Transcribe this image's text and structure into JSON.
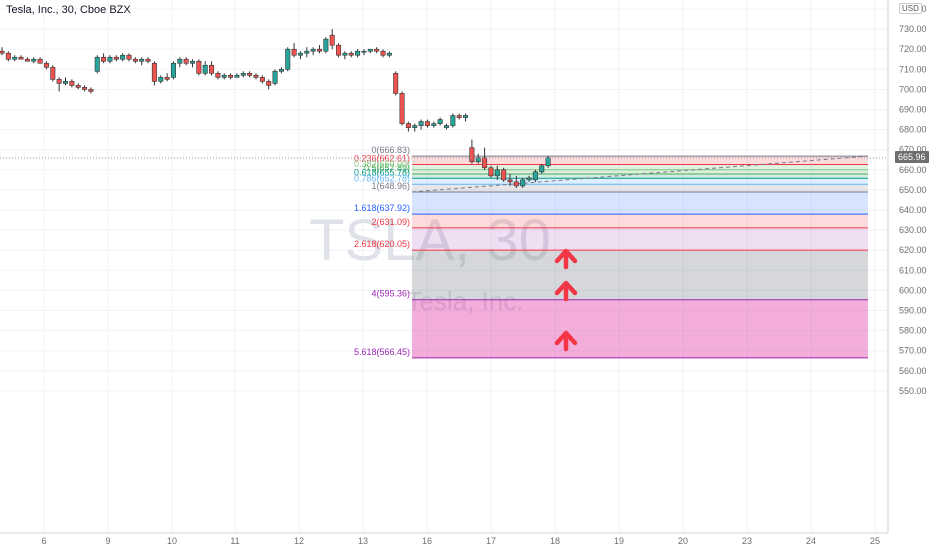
{
  "header": {
    "symbol_title": "Tesla, Inc., 30, Cboe BZX",
    "currency": "USD"
  },
  "watermark": {
    "ticker": "TSLA, 30",
    "company": "Tesla, Inc."
  },
  "chart_data": {
    "type": "candlestick",
    "title": "Tesla, Inc., 30, Cboe BZX",
    "ylim": [
      545,
      742
    ],
    "y_ticks": [
      550,
      560,
      570,
      580,
      590,
      600,
      610,
      620,
      630,
      640,
      650,
      660,
      670,
      680,
      690,
      700,
      710,
      720,
      730,
      740
    ],
    "x_tick_labels": [
      "6",
      "9",
      "10",
      "11",
      "12",
      "13",
      "16",
      "17",
      "18",
      "19",
      "20",
      "23",
      "24",
      "25"
    ],
    "last_price": "665.96",
    "candles": [
      {
        "i": 0,
        "o": 719,
        "h": 721,
        "l": 717,
        "c": 718
      },
      {
        "i": 1,
        "o": 718,
        "h": 719,
        "l": 714,
        "c": 715
      },
      {
        "i": 2,
        "o": 715,
        "h": 717,
        "l": 714,
        "c": 716
      },
      {
        "i": 3,
        "o": 716,
        "h": 717,
        "l": 715,
        "c": 715
      },
      {
        "i": 4,
        "o": 715,
        "h": 716,
        "l": 714,
        "c": 714
      },
      {
        "i": 5,
        "o": 714,
        "h": 716,
        "l": 713,
        "c": 715
      },
      {
        "i": 6,
        "o": 715,
        "h": 716,
        "l": 713,
        "c": 713
      },
      {
        "i": 7,
        "o": 713,
        "h": 714,
        "l": 710,
        "c": 711
      },
      {
        "i": 8,
        "o": 711,
        "h": 712,
        "l": 704,
        "c": 705
      },
      {
        "i": 9,
        "o": 705,
        "h": 706,
        "l": 699,
        "c": 703
      },
      {
        "i": 10,
        "o": 703,
        "h": 706,
        "l": 702,
        "c": 704
      },
      {
        "i": 11,
        "o": 704,
        "h": 705,
        "l": 701,
        "c": 702
      },
      {
        "i": 12,
        "o": 702,
        "h": 703,
        "l": 700,
        "c": 701
      },
      {
        "i": 13,
        "o": 701,
        "h": 702,
        "l": 699,
        "c": 700
      },
      {
        "i": 14,
        "o": 700,
        "h": 701,
        "l": 698,
        "c": 699
      },
      {
        "i": 15,
        "o": 709,
        "h": 717,
        "l": 708,
        "c": 716
      },
      {
        "i": 16,
        "o": 716,
        "h": 718,
        "l": 713,
        "c": 714
      },
      {
        "i": 17,
        "o": 714,
        "h": 717,
        "l": 713,
        "c": 716
      },
      {
        "i": 18,
        "o": 716,
        "h": 717,
        "l": 714,
        "c": 715
      },
      {
        "i": 19,
        "o": 715,
        "h": 718,
        "l": 714,
        "c": 717
      },
      {
        "i": 20,
        "o": 717,
        "h": 718,
        "l": 714,
        "c": 715
      },
      {
        "i": 21,
        "o": 715,
        "h": 716,
        "l": 713,
        "c": 714
      },
      {
        "i": 22,
        "o": 714,
        "h": 716,
        "l": 712,
        "c": 715
      },
      {
        "i": 23,
        "o": 715,
        "h": 716,
        "l": 713,
        "c": 714
      },
      {
        "i": 24,
        "o": 713,
        "h": 714,
        "l": 702,
        "c": 704
      },
      {
        "i": 25,
        "o": 704,
        "h": 707,
        "l": 703,
        "c": 706
      },
      {
        "i": 26,
        "o": 706,
        "h": 708,
        "l": 704,
        "c": 705
      },
      {
        "i": 27,
        "o": 706,
        "h": 714,
        "l": 705,
        "c": 713
      },
      {
        "i": 28,
        "o": 713,
        "h": 716,
        "l": 711,
        "c": 715
      },
      {
        "i": 29,
        "o": 715,
        "h": 716,
        "l": 712,
        "c": 713
      },
      {
        "i": 30,
        "o": 713,
        "h": 715,
        "l": 711,
        "c": 714
      },
      {
        "i": 31,
        "o": 714,
        "h": 715,
        "l": 707,
        "c": 708
      },
      {
        "i": 32,
        "o": 708,
        "h": 714,
        "l": 707,
        "c": 712
      },
      {
        "i": 33,
        "o": 712,
        "h": 714,
        "l": 707,
        "c": 708
      },
      {
        "i": 34,
        "o": 708,
        "h": 709,
        "l": 705,
        "c": 706
      },
      {
        "i": 35,
        "o": 706,
        "h": 708,
        "l": 705,
        "c": 707
      },
      {
        "i": 36,
        "o": 707,
        "h": 708,
        "l": 705,
        "c": 706
      },
      {
        "i": 37,
        "o": 706,
        "h": 708,
        "l": 706,
        "c": 707
      },
      {
        "i": 38,
        "o": 707,
        "h": 709,
        "l": 706,
        "c": 708
      },
      {
        "i": 39,
        "o": 708,
        "h": 709,
        "l": 706,
        "c": 707
      },
      {
        "i": 40,
        "o": 707,
        "h": 708,
        "l": 705,
        "c": 706
      },
      {
        "i": 41,
        "o": 706,
        "h": 707,
        "l": 703,
        "c": 704
      },
      {
        "i": 42,
        "o": 704,
        "h": 705,
        "l": 700,
        "c": 702
      },
      {
        "i": 43,
        "o": 703,
        "h": 710,
        "l": 702,
        "c": 709
      },
      {
        "i": 44,
        "o": 709,
        "h": 711,
        "l": 708,
        "c": 710
      },
      {
        "i": 45,
        "o": 710,
        "h": 721,
        "l": 709,
        "c": 720
      },
      {
        "i": 46,
        "o": 720,
        "h": 723,
        "l": 716,
        "c": 717
      },
      {
        "i": 47,
        "o": 717,
        "h": 719,
        "l": 715,
        "c": 718
      },
      {
        "i": 48,
        "o": 718,
        "h": 721,
        "l": 716,
        "c": 719
      },
      {
        "i": 49,
        "o": 719,
        "h": 721,
        "l": 717,
        "c": 720
      },
      {
        "i": 50,
        "o": 720,
        "h": 722,
        "l": 718,
        "c": 719
      },
      {
        "i": 51,
        "o": 719,
        "h": 726,
        "l": 718,
        "c": 725
      },
      {
        "i": 52,
        "o": 727,
        "h": 730,
        "l": 720,
        "c": 722
      },
      {
        "i": 53,
        "o": 722,
        "h": 723,
        "l": 716,
        "c": 717
      },
      {
        "i": 54,
        "o": 717,
        "h": 719,
        "l": 715,
        "c": 718
      },
      {
        "i": 55,
        "o": 718,
        "h": 719,
        "l": 716,
        "c": 717
      },
      {
        "i": 56,
        "o": 717,
        "h": 720,
        "l": 716,
        "c": 719
      },
      {
        "i": 57,
        "o": 719,
        "h": 720,
        "l": 717,
        "c": 719
      },
      {
        "i": 58,
        "o": 719,
        "h": 720,
        "l": 718,
        "c": 720
      },
      {
        "i": 59,
        "o": 720,
        "h": 721,
        "l": 718,
        "c": 719
      },
      {
        "i": 60,
        "o": 719,
        "h": 720,
        "l": 716,
        "c": 717
      },
      {
        "i": 61,
        "o": 717,
        "h": 719,
        "l": 716,
        "c": 718
      },
      {
        "i": 62,
        "o": 708,
        "h": 709,
        "l": 697,
        "c": 698
      },
      {
        "i": 63,
        "o": 698,
        "h": 699,
        "l": 682,
        "c": 683
      },
      {
        "i": 64,
        "o": 683,
        "h": 684,
        "l": 679,
        "c": 681
      },
      {
        "i": 65,
        "o": 681,
        "h": 683,
        "l": 679,
        "c": 682
      },
      {
        "i": 66,
        "o": 682,
        "h": 685,
        "l": 680,
        "c": 684
      },
      {
        "i": 67,
        "o": 684,
        "h": 685,
        "l": 681,
        "c": 682
      },
      {
        "i": 68,
        "o": 682,
        "h": 684,
        "l": 681,
        "c": 683
      },
      {
        "i": 69,
        "o": 683,
        "h": 686,
        "l": 682,
        "c": 685
      },
      {
        "i": 70,
        "o": 681,
        "h": 683,
        "l": 680,
        "c": 682
      },
      {
        "i": 71,
        "o": 682,
        "h": 688,
        "l": 681,
        "c": 687
      },
      {
        "i": 72,
        "o": 687,
        "h": 688,
        "l": 685,
        "c": 686
      },
      {
        "i": 73,
        "o": 686,
        "h": 688,
        "l": 684,
        "c": 687
      },
      {
        "i": 74,
        "o": 671,
        "h": 675,
        "l": 663,
        "c": 664
      },
      {
        "i": 75,
        "o": 664,
        "h": 668,
        "l": 663,
        "c": 666
      },
      {
        "i": 76,
        "o": 666,
        "h": 671,
        "l": 660,
        "c": 661
      },
      {
        "i": 77,
        "o": 661,
        "h": 662,
        "l": 656,
        "c": 657
      },
      {
        "i": 78,
        "o": 657,
        "h": 662,
        "l": 655,
        "c": 660
      },
      {
        "i": 79,
        "o": 660,
        "h": 661,
        "l": 654,
        "c": 655
      },
      {
        "i": 80,
        "o": 655,
        "h": 658,
        "l": 652,
        "c": 654
      },
      {
        "i": 81,
        "o": 654,
        "h": 657,
        "l": 651,
        "c": 652
      },
      {
        "i": 82,
        "o": 652,
        "h": 656,
        "l": 651,
        "c": 655
      },
      {
        "i": 83,
        "o": 655,
        "h": 657,
        "l": 654,
        "c": 656
      },
      {
        "i": 84,
        "o": 655,
        "h": 660,
        "l": 654,
        "c": 659
      },
      {
        "i": 85,
        "o": 659,
        "h": 663,
        "l": 658,
        "c": 662
      },
      {
        "i": 86,
        "o": 662,
        "h": 667,
        "l": 661,
        "c": 666
      }
    ],
    "fibonacci": [
      {
        "label": "0(666.83)",
        "level": "0",
        "value": 666.83,
        "color": "#787b86",
        "fill": "rgba(242,54,69,0.18)"
      },
      {
        "label": "0.236(662.61)",
        "level": "0.236",
        "value": 662.61,
        "color": "#f23645",
        "fill": "rgba(76,175,80,0.18)"
      },
      {
        "label": "0.382(660.00)",
        "level": "0.382",
        "value": 660.0,
        "color": "#81c784",
        "fill": "rgba(76,175,80,0.20)"
      },
      {
        "label": "0.5(657.89)",
        "level": "0.5",
        "value": 657.89,
        "color": "#4caf50",
        "fill": "rgba(8,153,129,0.18)"
      },
      {
        "label": "0.618(655.78)",
        "level": "0.618",
        "value": 655.78,
        "color": "#089981",
        "fill": "rgba(100,181,246,0.22)"
      },
      {
        "label": "0.786(652.78)",
        "level": "0.786",
        "value": 652.78,
        "color": "#64b5f6",
        "fill": "rgba(120,123,134,0.18)"
      },
      {
        "label": "1(648.96)",
        "level": "1",
        "value": 648.96,
        "color": "#787b86",
        "fill": "rgba(41,98,255,0.18)"
      },
      {
        "label": "1.618(637.92)",
        "level": "1.618",
        "value": 637.92,
        "color": "#2962ff",
        "fill": "rgba(242,54,69,0.18)"
      },
      {
        "label": "2(631.09)",
        "level": "2",
        "value": 631.09,
        "color": "#f23645",
        "fill": "rgba(156,39,176,0.15)"
      },
      {
        "label": "2.618(620.05)",
        "level": "2.618",
        "value": 620.05,
        "color": "#f23645",
        "fill": "rgba(120,123,134,0.30)"
      },
      {
        "label": "4(595.36)",
        "level": "4",
        "value": 595.36,
        "color": "#9c27b0",
        "fill": "rgba(214,0,140,0.32)"
      },
      {
        "label": "5.618(566.45)",
        "level": "5.618",
        "value": 566.45,
        "color": "#9c27b0",
        "fill": null
      }
    ],
    "trend_line": {
      "from_value": 648.96,
      "to_value": 666.83
    },
    "annotations": [
      {
        "type": "arrow-up",
        "color": "#f23645",
        "count": 3
      }
    ]
  },
  "colors": {
    "up": "#26a69a",
    "down": "#ef5350",
    "grid": "#f0f3fa",
    "axis_text": "#6e6e6e",
    "arrow": "#f23645"
  }
}
